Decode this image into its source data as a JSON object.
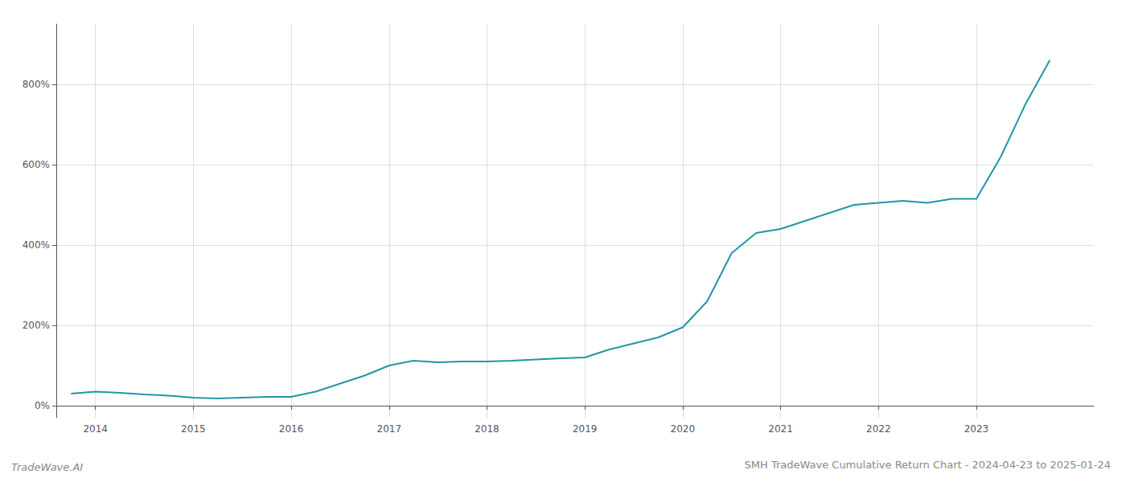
{
  "chart_data": {
    "type": "line",
    "title": "SMH TradeWave Cumulative Return Chart - 2024-04-23 to 2025-01-24",
    "annotations": [
      "TradeWave.AI"
    ],
    "x": [
      2013.75,
      2014.0,
      2014.25,
      2014.5,
      2014.75,
      2015.0,
      2015.25,
      2015.5,
      2015.75,
      2016.0,
      2016.25,
      2016.5,
      2016.75,
      2017.0,
      2017.25,
      2017.5,
      2017.75,
      2018.0,
      2018.25,
      2018.5,
      2018.75,
      2019.0,
      2019.25,
      2019.5,
      2019.75,
      2020.0,
      2020.25,
      2020.5,
      2020.75,
      2021.0,
      2021.25,
      2021.5,
      2021.75,
      2022.0,
      2022.25,
      2022.5,
      2022.75,
      2023.0,
      2023.25,
      2023.5,
      2023.75
    ],
    "values": [
      30,
      35,
      32,
      28,
      25,
      20,
      18,
      20,
      22,
      22,
      35,
      55,
      75,
      100,
      112,
      108,
      110,
      110,
      112,
      115,
      118,
      120,
      140,
      155,
      170,
      195,
      260,
      380,
      430,
      440,
      460,
      480,
      500,
      505,
      510,
      505,
      515,
      515,
      620,
      750,
      860
    ],
    "color": "#2196a8",
    "xlim": [
      2013.6,
      2024.2
    ],
    "xticks": [
      2014,
      2015,
      2016,
      2017,
      2018,
      2019,
      2020,
      2021,
      2022,
      2023
    ],
    "ylim": [
      -30,
      950
    ],
    "yticks": [
      {
        "value": 0,
        "label": "0%"
      },
      {
        "value": 200,
        "label": "200%"
      },
      {
        "value": 400,
        "label": "400%"
      },
      {
        "value": 600,
        "label": "600%"
      },
      {
        "value": 800,
        "label": "800%"
      }
    ],
    "grid": true
  }
}
